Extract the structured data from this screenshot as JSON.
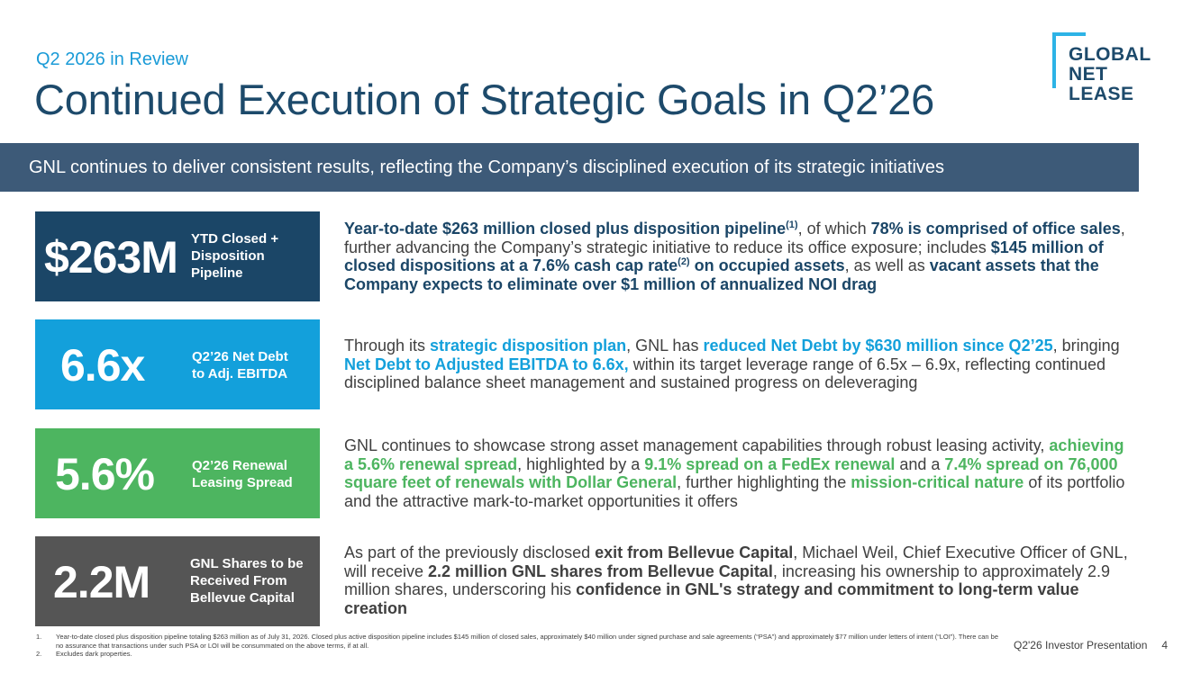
{
  "header": {
    "kicker": "Q2 2026 in Review",
    "title": "Continued Execution of Strategic Goals in Q2’26"
  },
  "logo": {
    "line1": "GLOBAL",
    "line2": "NET",
    "line3": "LEASE"
  },
  "banner": "GNL continues to deliver consistent results, reflecting the Company’s disciplined execution of its strategic initiatives",
  "metrics": [
    {
      "value": "$263M",
      "label_lines": [
        "YTD Closed +",
        "Disposition",
        "Pipeline"
      ],
      "color": "#1b4667"
    },
    {
      "value": "6.6x",
      "label_lines": [
        "Q2’26 Net Debt",
        "to Adj. EBITDA"
      ],
      "color": "#13a0db"
    },
    {
      "value": "5.6%",
      "label_lines": [
        "Q2’26 Renewal",
        "Leasing Spread"
      ],
      "color": "#4db560"
    },
    {
      "value": "2.2M",
      "label_lines": [
        "GNL Shares to be",
        "Received From",
        "Bellevue Capital"
      ],
      "color": "#555555"
    }
  ],
  "descriptions": {
    "d1": {
      "s1": "Year-to-date $263 million closed plus disposition pipeline",
      "sup1": "(1)",
      "s2": ", of which ",
      "s3": "78% is comprised of office sales",
      "s4": ", further advancing the Company’s strategic initiative to reduce its office exposure; includes ",
      "s5": "$145 million of closed dispositions at a 7.6% cash cap rate",
      "sup2": "(2)",
      "s6": " on occupied assets",
      "s7": ", as well as ",
      "s8": "vacant assets that the Company expects to eliminate over $1 million of annualized NOI drag"
    },
    "d2": {
      "s1": "Through its ",
      "s2": "strategic disposition plan",
      "s3": ", GNL has ",
      "s4": "reduced Net Debt by $630 million since Q2’25",
      "s5": ", bringing ",
      "s6": "Net Debt to Adjusted EBITDA to 6.6x,",
      "s7": " within its target leverage range of 6.5x – 6.9x, reflecting continued disciplined balance sheet management and sustained progress on deleveraging"
    },
    "d3": {
      "s1": "GNL continues to showcase strong asset management capabilities through robust leasing activity, ",
      "s2": "achieving a 5.6% renewal spread",
      "s3": ", highlighted by a ",
      "s4": "9.1% spread on a FedEx renewal",
      "s5": " and a ",
      "s6": "7.4% spread on 76,000 square feet of renewals with Dollar General",
      "s7": ", further highlighting the ",
      "s8": "mission-critical nature",
      "s9": " of its portfolio and the attractive mark-to-market opportunities it offers"
    },
    "d4": {
      "s1": "As part of the previously disclosed ",
      "s2": "exit from Bellevue Capital",
      "s3": ", Michael Weil, Chief Executive Officer of GNL, will receive ",
      "s4": "2.2 million GNL shares from Bellevue Capital",
      "s5": ", increasing his ownership to approximately 2.9 million shares, underscoring his ",
      "s6": "confidence in GNL's strategy and commitment to long-term value creation"
    }
  },
  "footnotes": [
    {
      "num": "1.",
      "text": "Year-to-date closed plus disposition pipeline totaling $263 million as of July 31, 2026. Closed plus active disposition pipeline includes $145 million of closed sales, approximately $40 million under signed purchase and sale agreements (“PSA”) and approximately $77 million under letters of intent (“LOI”). There can be no assurance that transactions under such PSA or LOI will be consummated on the above terms, if at all."
    },
    {
      "num": "2.",
      "text": "Excludes dark properties."
    }
  ],
  "footer": {
    "presentation": "Q2'26 Investor Presentation",
    "page": "4"
  }
}
